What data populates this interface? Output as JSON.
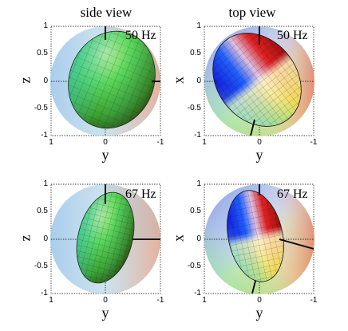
{
  "column_titles": [
    "side view",
    "top view"
  ],
  "panels": [
    {
      "freq_label": "50 Hz",
      "horizontal_axis_label": "y",
      "vertical_axis_label": "z",
      "view": "side"
    },
    {
      "freq_label": "50 Hz",
      "horizontal_axis_label": "y",
      "vertical_axis_label": "x",
      "view": "top"
    },
    {
      "freq_label": "67 Hz",
      "horizontal_axis_label": "y",
      "vertical_axis_label": "z",
      "view": "side"
    },
    {
      "freq_label": "67 Hz",
      "horizontal_axis_label": "y",
      "vertical_axis_label": "x",
      "view": "top"
    }
  ],
  "x_ticks": [
    "1",
    "0",
    "-1"
  ],
  "y_ticks": [
    "1",
    "0.5",
    "0",
    "-0.5",
    "-1"
  ],
  "colors": {
    "sphere_blue": "#8cb8e8",
    "sphere_red": "#e8a090",
    "ellipsoid_green": "#7fd84a",
    "ellipsoid_red": "#d81818",
    "ellipsoid_blue": "#1a1ae0"
  }
}
